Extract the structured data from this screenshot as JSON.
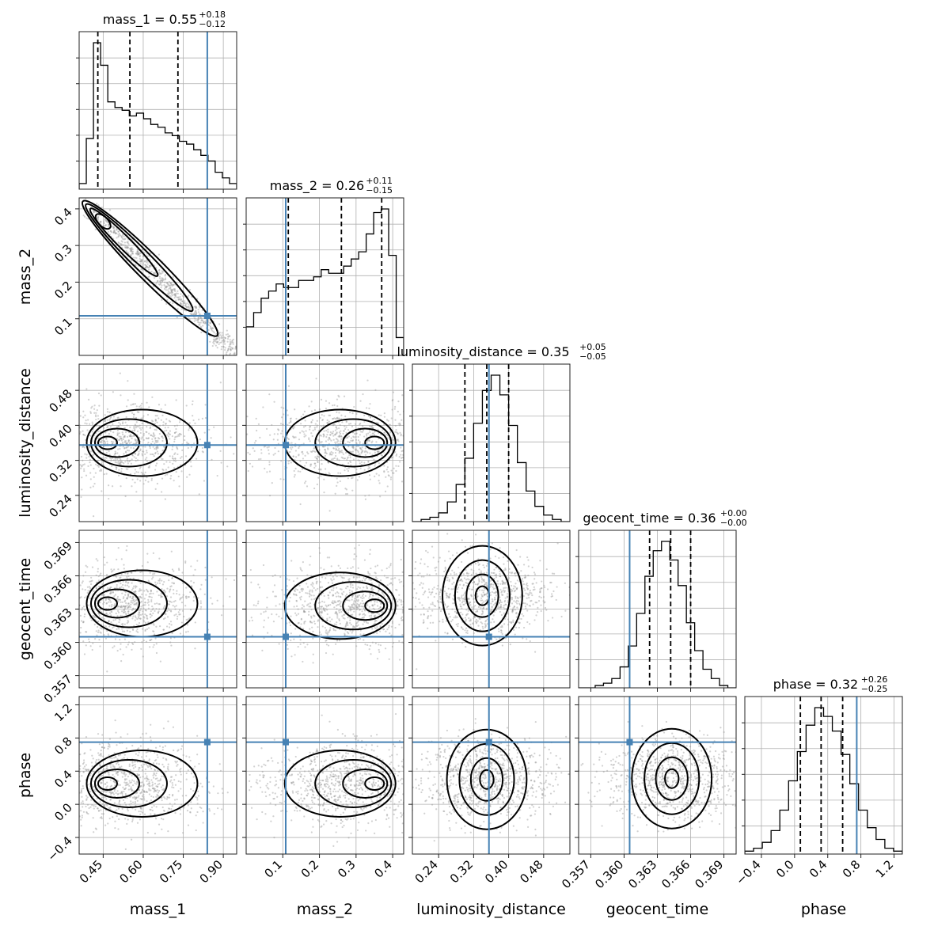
{
  "chart_data": {
    "type": "corner",
    "truth_color": "#4682b4",
    "quantile_color": "#000000",
    "parameters": [
      {
        "name": "mass_1",
        "axis_label": "mass_1",
        "median": "0.55",
        "plus": "+0.18",
        "minus": "−0.12",
        "title": "mass_1 = 0.55",
        "range": [
          0.36,
          0.95
        ],
        "truth": 0.84,
        "ticks": [
          0.45,
          0.6,
          0.75,
          0.9
        ],
        "tick_labels": [
          "0.45",
          "0.60",
          "0.75",
          "0.90"
        ],
        "quantiles": [
          0.43,
          0.55,
          0.73
        ],
        "hist": [
          2,
          18,
          52,
          44,
          31,
          29,
          28,
          26,
          27,
          25,
          23,
          22,
          20,
          19,
          17,
          16,
          14,
          12,
          10,
          6,
          4,
          2
        ]
      },
      {
        "name": "mass_2",
        "axis_label": "mass_2",
        "median": "0.26",
        "plus": "+0.11",
        "minus": "−0.15",
        "title": "mass_2 = 0.26",
        "range": [
          0.0,
          0.43
        ],
        "truth": 0.108,
        "ticks": [
          0.1,
          0.2,
          0.3,
          0.4
        ],
        "tick_labels": [
          "0.1",
          "0.2",
          "0.3",
          "0.4"
        ],
        "quantiles": [
          0.115,
          0.26,
          0.37
        ],
        "hist": [
          8,
          12,
          16,
          18,
          20,
          19,
          19,
          21,
          21,
          22,
          24,
          23,
          23,
          25,
          27,
          29,
          34,
          40,
          41,
          28,
          5
        ]
      },
      {
        "name": "luminosity_distance",
        "axis_label": "luminosity_distance",
        "median": "0.35",
        "plus": "+0.05",
        "minus": "−0.05",
        "title": "luminosity_distance = 0.35",
        "range": [
          0.18,
          0.54
        ],
        "truth": 0.355,
        "ticks": [
          0.24,
          0.32,
          0.4,
          0.48
        ],
        "tick_labels": [
          "0.24",
          "0.32",
          "0.40",
          "0.48"
        ],
        "quantiles": [
          0.3,
          0.35,
          0.4
        ],
        "hist": [
          0,
          1,
          2,
          4,
          9,
          17,
          29,
          45,
          60,
          67,
          58,
          44,
          27,
          14,
          7,
          3,
          1,
          0
        ]
      },
      {
        "name": "geocent_time",
        "axis_label": "geocent_time",
        "median": "0.36",
        "plus": "+0.00",
        "minus": "−0.00",
        "title": "geocent_time = 0.36",
        "range": [
          0.3559,
          0.3701
        ],
        "truth": 0.3605,
        "ticks": [
          0.357,
          0.36,
          0.363,
          0.366,
          0.369
        ],
        "tick_labels": [
          "0.357",
          "0.360",
          "0.363",
          "0.366",
          "0.369"
        ],
        "quantiles": [
          0.3623,
          0.3642,
          0.366
        ],
        "hist": [
          0,
          0,
          1,
          2,
          4,
          9,
          18,
          32,
          48,
          59,
          63,
          55,
          44,
          28,
          16,
          8,
          4,
          1,
          0
        ]
      },
      {
        "name": "phase",
        "axis_label": "phase",
        "median": "0.32",
        "plus": "+0.26",
        "minus": "−0.25",
        "title": "phase = 0.32",
        "range": [
          -0.6,
          1.3
        ],
        "truth": 0.75,
        "ticks": [
          -0.4,
          0.0,
          0.4,
          0.8,
          1.2
        ],
        "tick_labels": [
          "−0.4",
          "0.0",
          "0.4",
          "0.8",
          "1.2"
        ],
        "quantiles": [
          0.07,
          0.32,
          0.58
        ],
        "hist": [
          1,
          2,
          4,
          8,
          15,
          25,
          35,
          44,
          50,
          47,
          42,
          34,
          24,
          15,
          9,
          5,
          2,
          1
        ]
      }
    ],
    "joint_modes": [
      {
        "x": "mass_1",
        "y": "mass_2",
        "cx": 0.43,
        "cy": 0.38,
        "anticorr": true
      },
      {
        "x": "mass_1",
        "y": "luminosity_distance",
        "cx": 0.44,
        "cy": 0.36
      },
      {
        "x": "mass_2",
        "y": "luminosity_distance",
        "cx": 0.37,
        "cy": 0.36
      },
      {
        "x": "mass_1",
        "y": "geocent_time",
        "cx": 0.44,
        "cy": 0.3635
      },
      {
        "x": "mass_2",
        "y": "geocent_time",
        "cx": 0.37,
        "cy": 0.3633
      },
      {
        "x": "luminosity_distance",
        "y": "geocent_time",
        "cx": 0.34,
        "cy": 0.3642
      },
      {
        "x": "mass_1",
        "y": "phase",
        "cx": 0.44,
        "cy": 0.25
      },
      {
        "x": "mass_2",
        "y": "phase",
        "cx": 0.37,
        "cy": 0.25
      },
      {
        "x": "luminosity_distance",
        "y": "phase",
        "cx": 0.35,
        "cy": 0.3
      },
      {
        "x": "geocent_time",
        "y": "phase",
        "cx": 0.3643,
        "cy": 0.31
      }
    ]
  }
}
